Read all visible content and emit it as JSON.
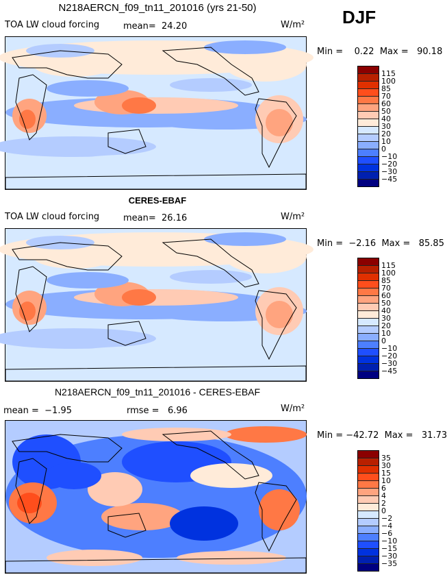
{
  "season": "DJF",
  "units": "W/m²",
  "colors": [
    "#8b0000",
    "#b82000",
    "#e03000",
    "#ff4e1c",
    "#ff7845",
    "#ffa47f",
    "#ffcbb4",
    "#ffebd9",
    "#d6e9ff",
    "#b4ccff",
    "#8aaeff",
    "#4d7fff",
    "#1f4fff",
    "#0032df",
    "#0020b0",
    "#000080"
  ],
  "panels": [
    {
      "title": "N218AERCN_f09_tn11_201016 (yrs 21-50)",
      "variable": "TOA LW cloud forcing",
      "mean_label": "mean=  24.20",
      "units": "W/m²",
      "minmax": "Min =    0.22  Max =   90.18",
      "levels": [
        "115",
        "100",
        "85",
        "70",
        "60",
        "50",
        "40",
        "30",
        "20",
        "10",
        "0",
        "−10",
        "−20",
        "−30",
        "−45"
      ]
    },
    {
      "title": "CERES-EBAF",
      "variable": "TOA LW cloud forcing",
      "mean_label": "mean=  26.16",
      "units": "W/m²",
      "minmax": "Min =  −2.16  Max =   85.85",
      "levels": [
        "115",
        "100",
        "85",
        "70",
        "60",
        "50",
        "40",
        "30",
        "20",
        "10",
        "0",
        "−10",
        "−20",
        "−30",
        "−45"
      ]
    },
    {
      "title": "N218AERCN_f09_tn11_201016 - CERES-EBAF",
      "mean_label": "mean =  −1.95",
      "rmse_label": "rmse =   6.96",
      "units": "W/m²",
      "minmax": "Min = −42.72  Max =   31.73",
      "levels": [
        "35",
        "30",
        "15",
        "10",
        "6",
        "4",
        "2",
        "0",
        "−2",
        "−4",
        "−6",
        "−10",
        "−15",
        "−30",
        "−35"
      ]
    }
  ],
  "chart_data": [
    {
      "type": "heatmap",
      "title": "N218AERCN_f09_tn11_201016 (yrs 21-50)",
      "subtitle": "TOA LW cloud forcing",
      "mean": 24.2,
      "min": 0.22,
      "max": 90.18,
      "units": "W/m2",
      "contour_levels": [
        -45,
        -30,
        -20,
        -10,
        0,
        10,
        20,
        30,
        40,
        50,
        60,
        70,
        85,
        100,
        115
      ]
    },
    {
      "type": "heatmap",
      "title": "CERES-EBAF",
      "subtitle": "TOA LW cloud forcing",
      "mean": 26.16,
      "min": -2.16,
      "max": 85.85,
      "units": "W/m2",
      "contour_levels": [
        -45,
        -30,
        -20,
        -10,
        0,
        10,
        20,
        30,
        40,
        50,
        60,
        70,
        85,
        100,
        115
      ]
    },
    {
      "type": "heatmap",
      "title": "N218AERCN_f09_tn11_201016 - CERES-EBAF",
      "mean": -1.95,
      "rmse": 6.96,
      "min": -42.72,
      "max": 31.73,
      "units": "W/m2",
      "contour_levels": [
        -35,
        -30,
        -15,
        -10,
        -6,
        -4,
        -2,
        0,
        2,
        4,
        6,
        10,
        15,
        30,
        35
      ]
    }
  ]
}
